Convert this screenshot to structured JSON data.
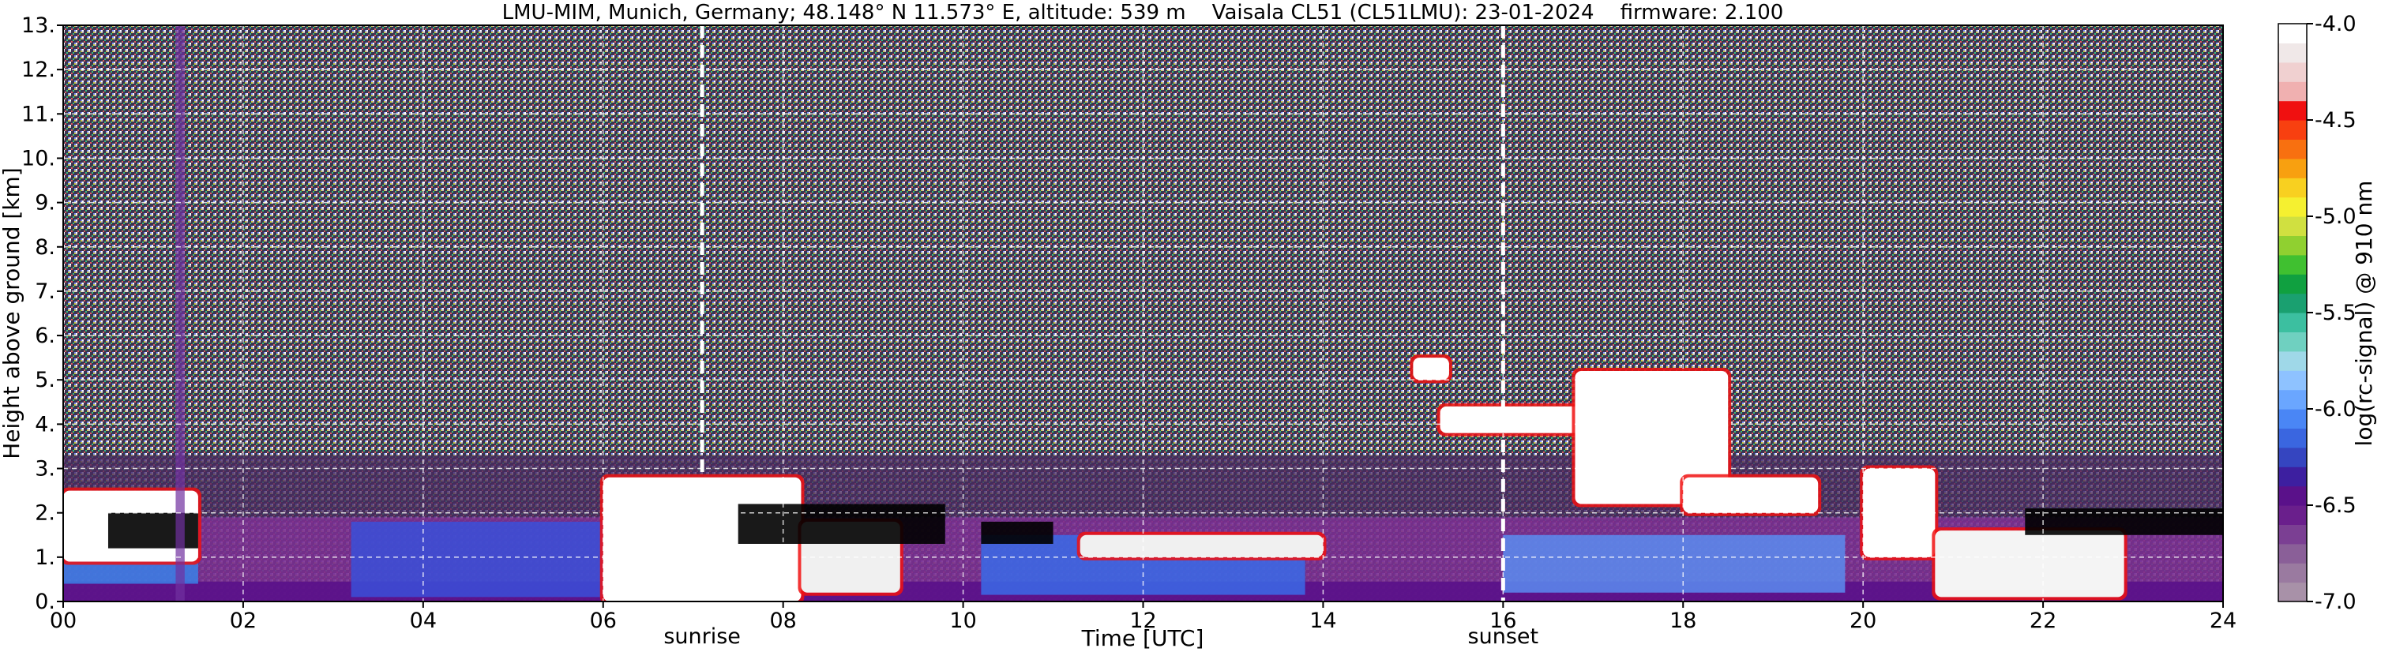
{
  "chart_data": {
    "type": "heatmap",
    "title": "LMU-MIM, Munich, Germany; 48.148° N 11.573° E, altitude: 539 m    Vaisala CL51 (CL51LMU): 23-01-2024    firmware: 2.100",
    "xlabel": "Time [UTC]",
    "ylabel": "Height above ground [km]",
    "xlim": [
      0,
      24
    ],
    "ylim": [
      0,
      13
    ],
    "x_ticks": [
      "00",
      "02",
      "04",
      "06",
      "08",
      "10",
      "12",
      "14",
      "16",
      "18",
      "20",
      "22",
      "24"
    ],
    "y_ticks": [
      "0.",
      "1.",
      "2.",
      "3.",
      "4.",
      "5.",
      "6.",
      "7.",
      "8.",
      "9.",
      "10.",
      "11.",
      "12.",
      "13."
    ],
    "grid": true,
    "colorbar": {
      "label": "log(rc-signal) @ 910 nm",
      "range": [
        -7.0,
        -4.0
      ],
      "ticks": [
        "-4.0",
        "-4.5",
        "-5.0",
        "-5.5",
        "-6.0",
        "-6.5",
        "-7.0"
      ],
      "colors": [
        "#a891a8",
        "#9a7aa0",
        "#8a5f98",
        "#7b3f93",
        "#6a1f8c",
        "#5a118a",
        "#3d1fa0",
        "#3545c0",
        "#3a66e0",
        "#4a86f5",
        "#6aa6ff",
        "#8ec2ff",
        "#9fd8e8",
        "#6fd0c0",
        "#3cbfa0",
        "#1aa070",
        "#10a040",
        "#40c030",
        "#90d030",
        "#d0e040",
        "#f5f030",
        "#f8d020",
        "#f8a010",
        "#f87010",
        "#f84010",
        "#f01010",
        "#f0b0b0",
        "#f0d0d0",
        "#f0e8e8",
        "#ffffff"
      ]
    },
    "annotations": [
      {
        "text": "sunrise",
        "x": 7.1
      },
      {
        "text": "sunset",
        "x": 16.0
      }
    ],
    "vertical_lines": [
      7.1,
      16.0
    ],
    "layers": [
      {
        "x0": 0,
        "x1": 24,
        "y0": 0,
        "y1": 1.9,
        "color": "#7a2f90"
      },
      {
        "x0": 0,
        "x1": 24,
        "y0": 1.9,
        "y1": 3.3,
        "color": "#4a2a60"
      },
      {
        "x0": 0,
        "x1": 24,
        "y0": 0,
        "y1": 0.45,
        "color": "#5a118a"
      }
    ],
    "features": [
      {
        "kind": "boundary_layer",
        "x0": 3.2,
        "x1": 6.2,
        "y0": 0.1,
        "y1": 1.8,
        "color": "#3a4fd8"
      },
      {
        "kind": "boundary_layer",
        "x0": 10.2,
        "x1": 13.8,
        "y0": 0.15,
        "y1": 1.5,
        "color": "#3a6ae8"
      },
      {
        "kind": "boundary_layer",
        "x0": 16.0,
        "x1": 19.8,
        "y0": 0.2,
        "y1": 1.5,
        "color": "#5a8cf0"
      },
      {
        "kind": "aerosol_layer",
        "x0": 0,
        "x1": 1.5,
        "y0": 0.4,
        "y1": 0.9,
        "color": "#3a80e8"
      },
      {
        "kind": "cloud",
        "x0": 0.0,
        "x1": 1.5,
        "y0": 0.9,
        "y1": 2.5,
        "color": "#ffffff"
      },
      {
        "kind": "cloud",
        "x0": 6.0,
        "x1": 8.2,
        "y0": 0.0,
        "y1": 2.8,
        "color": "#ffffff"
      },
      {
        "kind": "cloud",
        "x0": 8.2,
        "x1": 9.3,
        "y0": 0.2,
        "y1": 1.8,
        "color": "#f0f0f0"
      },
      {
        "kind": "cloud",
        "x0": 11.3,
        "x1": 14.0,
        "y0": 1.0,
        "y1": 1.5,
        "color": "#f0f0f0"
      },
      {
        "kind": "cloud",
        "x0": 15.0,
        "x1": 15.4,
        "y0": 5.0,
        "y1": 5.5,
        "color": "#ffffff"
      },
      {
        "kind": "cloud",
        "x0": 15.3,
        "x1": 17.0,
        "y0": 3.8,
        "y1": 4.4,
        "color": "#ffffff"
      },
      {
        "kind": "cloud",
        "x0": 16.8,
        "x1": 18.5,
        "y0": 2.2,
        "y1": 5.2,
        "color": "#ffffff"
      },
      {
        "kind": "cloud",
        "x0": 18.0,
        "x1": 19.5,
        "y0": 2.0,
        "y1": 2.8,
        "color": "#ffffff"
      },
      {
        "kind": "cloud",
        "x0": 20.0,
        "x1": 20.8,
        "y0": 1.0,
        "y1": 3.0,
        "color": "#ffffff"
      },
      {
        "kind": "cloud",
        "x0": 20.8,
        "x1": 22.9,
        "y0": 0.1,
        "y1": 1.6,
        "color": "#f4f4f4"
      },
      {
        "kind": "clear_sky",
        "x0": 0.5,
        "x1": 1.5,
        "y0": 1.2,
        "y1": 2.0,
        "color": "#000000"
      },
      {
        "kind": "clear_sky",
        "x0": 7.5,
        "x1": 9.8,
        "y0": 1.3,
        "y1": 2.2,
        "color": "#000000"
      },
      {
        "kind": "clear_sky",
        "x0": 10.2,
        "x1": 11.0,
        "y0": 1.3,
        "y1": 1.8,
        "color": "#000000"
      },
      {
        "kind": "clear_sky",
        "x0": 21.8,
        "x1": 24.0,
        "y0": 1.5,
        "y1": 2.1,
        "color": "#000000"
      },
      {
        "kind": "streak",
        "x0": 1.25,
        "x1": 1.35,
        "y0": 0,
        "y1": 13,
        "color": "#7030a0"
      }
    ]
  }
}
